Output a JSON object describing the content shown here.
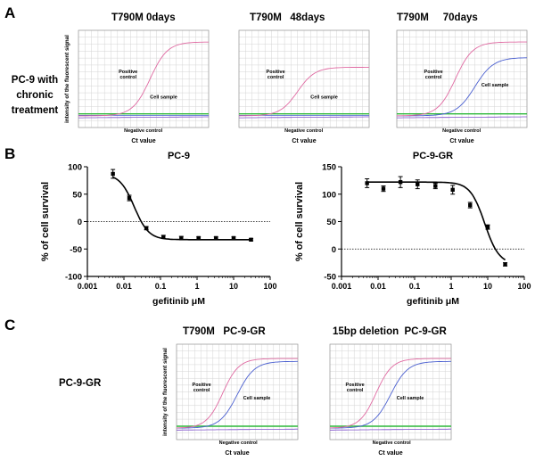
{
  "panels": {
    "A": {
      "letter": "A",
      "row_label_lines": [
        "PC-9 with",
        "chronic",
        "treatment"
      ],
      "plots": [
        {
          "title": "T790M 0days",
          "ylabel": "intensity of the fluorescent signal",
          "xlabel": "Ct value",
          "labels": {
            "positive": "Positive control",
            "sample": "Cell sample",
            "negative": "Negative control"
          },
          "curves": {
            "positive_mid": 0.55,
            "positive_top": 0.88,
            "sample": "flat",
            "negative": "flat"
          }
        },
        {
          "title": "T790M   48days",
          "ylabel": "",
          "xlabel": "Ct value",
          "labels": {
            "positive": "Positive control",
            "sample": "Cell sample",
            "negative": "Negative control"
          },
          "curves": {
            "positive_mid": 0.45,
            "positive_top": 0.62,
            "sample": "flat",
            "negative": "flat"
          }
        },
        {
          "title": "T790M     70days",
          "ylabel": "",
          "xlabel": "Ct value",
          "labels": {
            "positive": "Positive control",
            "sample": "Cell sample",
            "negative": "Negative control"
          },
          "curves": {
            "positive_mid": 0.45,
            "positive_top": 0.88,
            "sample_mid": 0.6,
            "sample_top": 0.72,
            "negative": "flat"
          }
        }
      ]
    },
    "B": {
      "letter": "B"
    },
    "C": {
      "letter": "C",
      "row_label": "PC-9-GR",
      "plots": [
        {
          "title": "T790M   PC-9-GR",
          "ylabel": "intensity of the fluorescent signal",
          "xlabel": "Ct value",
          "labels": {
            "positive": "Positive control",
            "sample": "Cell sample",
            "negative": "Negative control"
          },
          "curves": {
            "positive_mid": 0.38,
            "positive_top": 0.85,
            "sample_mid": 0.5,
            "sample_top": 0.82,
            "negative": "flat"
          }
        },
        {
          "title": "15bp deletion  PC-9-GR",
          "ylabel": "",
          "xlabel": "Ct value",
          "labels": {
            "positive": "Positive control",
            "sample": "Cell sample",
            "negative": "Negative control"
          },
          "curves": {
            "positive_mid": 0.38,
            "positive_top": 0.85,
            "sample_mid": 0.5,
            "sample_top": 0.82,
            "negative": "flat"
          }
        }
      ]
    }
  },
  "colors": {
    "positive": "#e06aa2",
    "sample": "#4a5fd0",
    "negative": "#2db83a",
    "baseline": "#7d4fc9",
    "grid": "#d4d4d4",
    "curve": "#000000"
  },
  "chart_data": [
    {
      "type": "scatter",
      "title": "PC-9",
      "xlabel": "gefitinib μM",
      "ylabel": "% of cell survival",
      "xscale": "log",
      "xlim": [
        0.001,
        100
      ],
      "ylim": [
        -100,
        100
      ],
      "xticks": [
        "0.001",
        "0.01",
        "0.1",
        "1",
        "10",
        "100"
      ],
      "yticks": [
        "-100",
        "-50",
        "0",
        "50",
        "100"
      ],
      "reference_line_y": 0,
      "x": [
        0.005,
        0.014,
        0.041,
        0.12,
        0.37,
        1.1,
        3.3,
        10,
        30
      ],
      "y": [
        87,
        43,
        -12,
        -28,
        -30,
        -30,
        -30,
        -30,
        -33
      ],
      "err": [
        8,
        5,
        3,
        3,
        3,
        2,
        2,
        2,
        2
      ],
      "fit": "sigmoid"
    },
    {
      "type": "scatter",
      "title": "PC-9-GR",
      "xlabel": "gefitinib μM",
      "ylabel": "% of cell survival",
      "xscale": "log",
      "xlim": [
        0.001,
        100
      ],
      "ylim": [
        -50,
        150
      ],
      "xticks": [
        "0.001",
        "0.01",
        "0.1",
        "1",
        "10",
        "100"
      ],
      "yticks": [
        "-50",
        "0",
        "50",
        "100",
        "150"
      ],
      "reference_line_y": 0,
      "x": [
        0.005,
        0.014,
        0.041,
        0.12,
        0.37,
        1.1,
        3.3,
        10,
        30
      ],
      "y": [
        120,
        110,
        122,
        118,
        115,
        108,
        80,
        40,
        -28
      ],
      "err": [
        8,
        5,
        10,
        8,
        5,
        8,
        5,
        4,
        3
      ],
      "fit": "sigmoid"
    }
  ]
}
